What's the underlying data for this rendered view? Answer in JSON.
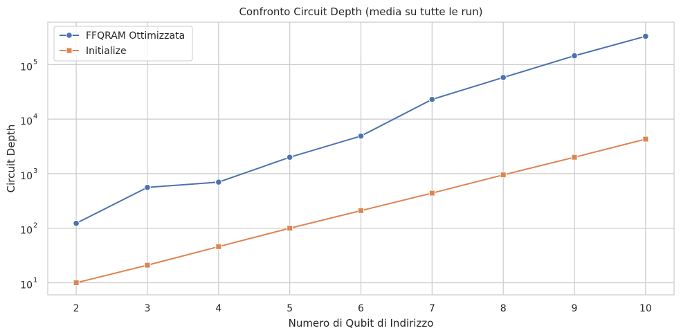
{
  "chart_data": {
    "type": "line",
    "title": "Confronto Circuit Depth (media su tutte le run)",
    "xlabel": "Numero di Qubit di Indirizzo",
    "ylabel": "Circuit Depth",
    "x": [
      2,
      3,
      4,
      5,
      6,
      7,
      8,
      9,
      10
    ],
    "x_ticks": [
      "2",
      "3",
      "4",
      "5",
      "6",
      "7",
      "8",
      "9",
      "10"
    ],
    "xlim": [
      1.6,
      10.4
    ],
    "yscale": "log",
    "ylim": [
      6,
      600000
    ],
    "y_ticks": [
      {
        "value": 10,
        "base": "10",
        "exp": "1"
      },
      {
        "value": 100,
        "base": "10",
        "exp": "2"
      },
      {
        "value": 1000,
        "base": "10",
        "exp": "3"
      },
      {
        "value": 10000,
        "base": "10",
        "exp": "4"
      },
      {
        "value": 100000,
        "base": "10",
        "exp": "5"
      }
    ],
    "grid": true,
    "legend_position": "top-left",
    "series": [
      {
        "name": "FFQRAM Ottimizzata",
        "color": "#4c72b0",
        "marker": "circle",
        "values": [
          123,
          560,
          700,
          2000,
          4900,
          23000,
          58000,
          145000,
          330000
        ]
      },
      {
        "name": "Initialize",
        "color": "#dd8452",
        "marker": "square",
        "values": [
          10,
          21,
          46,
          100,
          210,
          440,
          950,
          2000,
          4300
        ]
      }
    ]
  }
}
